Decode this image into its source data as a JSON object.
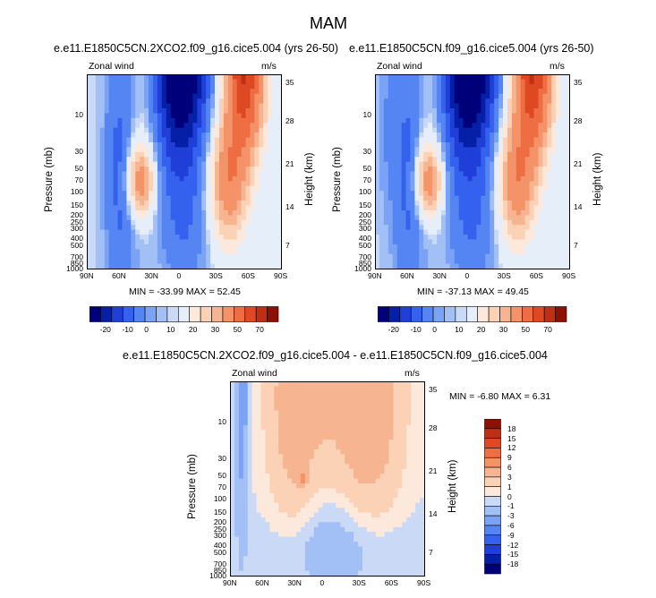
{
  "figure": {
    "season": "MAM"
  },
  "colors": {
    "blue_scale": [
      "#00007a",
      "#0520a6",
      "#1f3fd8",
      "#3462ee",
      "#5585f3",
      "#7aa3f6",
      "#a2c0f5",
      "#cadaf6",
      "#e6eefa"
    ],
    "red_scale": [
      "#fde9dc",
      "#fbd2b5",
      "#f7b491",
      "#f49268",
      "#ee6d42",
      "#de4923",
      "#bf2f14",
      "#8c1004"
    ],
    "axis": "#000000"
  },
  "chart_data": [
    {
      "id": "left",
      "type": "heatmap",
      "title": "e.e11.E1850C5CN.2XCO2.f09_g16.cice5.004 (yrs 26-50)",
      "variable": "Zonal wind",
      "units": "m/s",
      "ylabel": "Pressure (mb)",
      "ylabel_right": "Height (km)",
      "x_ticks": [
        "90N",
        "60N",
        "30N",
        "0",
        "30S",
        "60S",
        "90S"
      ],
      "pressure_ticks": [
        "10",
        "30",
        "50",
        "70",
        "100",
        "150",
        "200",
        "250",
        "300",
        "400",
        "500",
        "700",
        "850",
        "1000"
      ],
      "height_ticks": [
        "35",
        "28",
        "21",
        "14",
        "7"
      ],
      "min_max": "MIN = -33.99  MAX = 52.45"
    },
    {
      "id": "middle",
      "type": "heatmap",
      "title": "e.e11.E1850C5CN.f09_g16.cice5.004 (yrs 26-50)",
      "variable": "Zonal wind",
      "units": "m/s",
      "ylabel": "Pressure (mb)",
      "ylabel_right": "Height (km)",
      "x_ticks": [
        "90N",
        "60N",
        "30N",
        "0",
        "30S",
        "60S",
        "90S"
      ],
      "pressure_ticks": [
        "10",
        "30",
        "50",
        "70",
        "100",
        "150",
        "200",
        "250",
        "300",
        "400",
        "500",
        "700",
        "850",
        "1000"
      ],
      "height_ticks": [
        "35",
        "28",
        "21",
        "14",
        "7"
      ],
      "min_max": "MIN = -37.13  MAX = 49.45"
    },
    {
      "id": "diff",
      "type": "heatmap",
      "title": "e.e11.E1850C5CN.2XCO2.f09_g16.cice5.004 - e.e11.E1850C5CN.f09_g16.cice5.004",
      "variable": "Zonal wind",
      "units": "m/s",
      "ylabel": "Pressure (mb)",
      "ylabel_right": "Height (km)",
      "x_ticks": [
        "90N",
        "60N",
        "30N",
        "0",
        "30S",
        "60S",
        "90S"
      ],
      "pressure_ticks": [
        "10",
        "30",
        "50",
        "70",
        "100",
        "150",
        "200",
        "250",
        "300",
        "400",
        "500",
        "700",
        "850",
        "1000"
      ],
      "height_ticks": [
        "35",
        "28",
        "21",
        "14",
        "7"
      ],
      "min_max": "MIN = -6.80  MAX =  6.31"
    }
  ],
  "colorbars": {
    "main": {
      "labels": [
        "-20",
        "-10",
        "0",
        "10",
        "20",
        "30",
        "50",
        "70"
      ]
    },
    "diff": {
      "labels": [
        "18",
        "15",
        "12",
        "9",
        "6",
        "3",
        "1",
        "0",
        "-1",
        "-3",
        "-6",
        "-9",
        "-12",
        "-15",
        "-18"
      ]
    }
  }
}
